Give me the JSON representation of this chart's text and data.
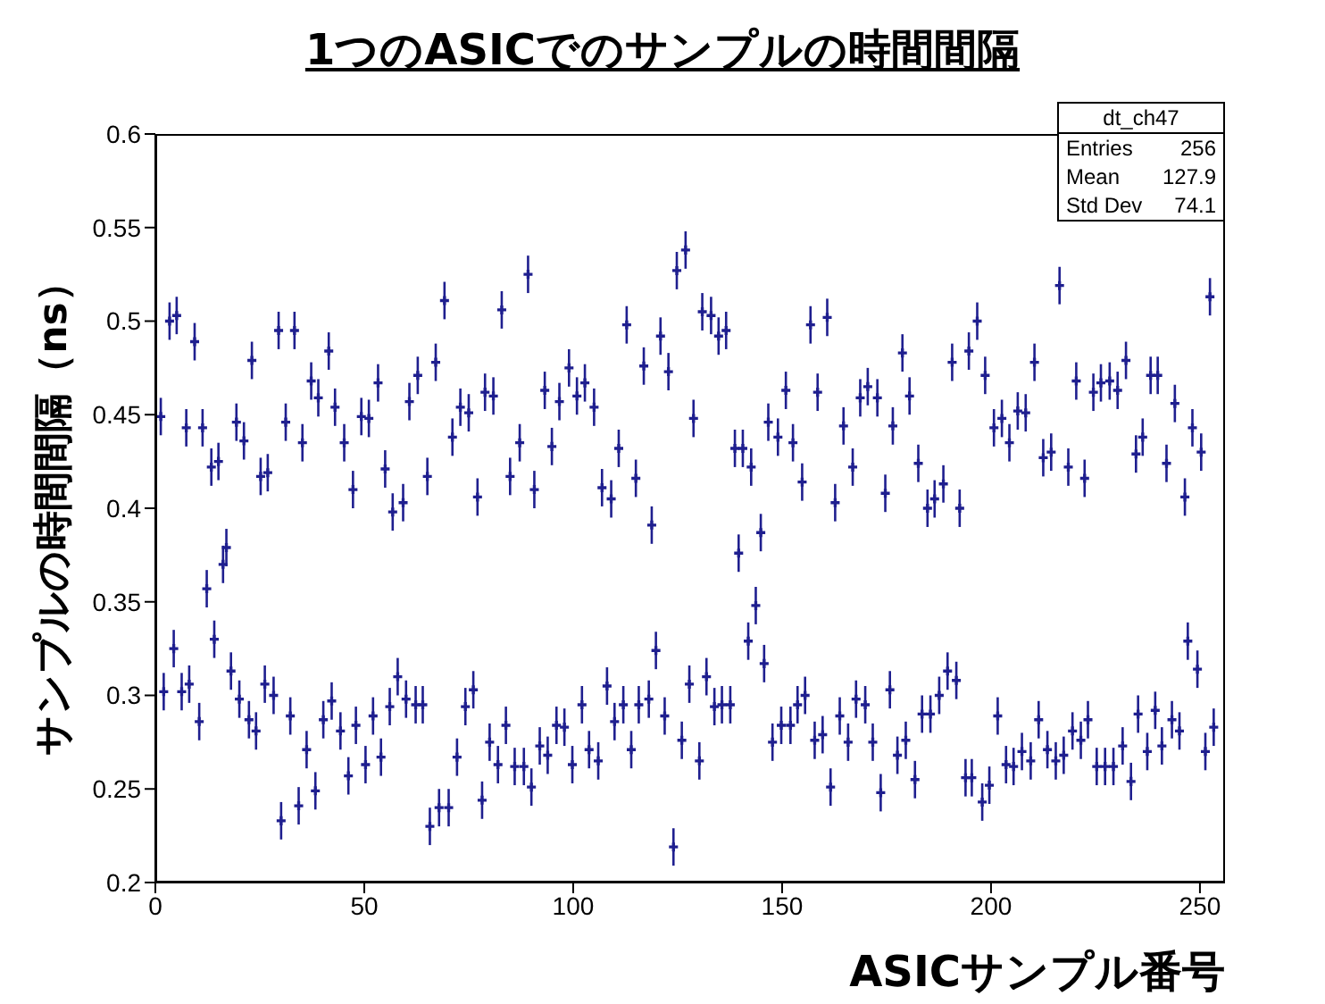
{
  "chart_data": {
    "type": "scatter",
    "title": "1つのASICでのサンプルの時間間隔",
    "xlabel": "ASICサンプル番号",
    "ylabel": "サンプルの時間間隔（ns）",
    "annotations": [
      "dt_ch47",
      "Entries",
      "256",
      "Mean",
      "127.9",
      "Std Dev",
      "74.1"
    ],
    "xlim": [
      0,
      256
    ],
    "xticks": [
      0,
      50,
      100,
      150,
      200,
      250
    ],
    "ylim": [
      0.2,
      0.6
    ],
    "yticks": [
      0.2,
      0.25,
      0.3,
      0.35,
      0.4,
      0.45,
      0.5,
      0.55,
      0.6
    ],
    "grid": false,
    "legend": false,
    "marker": "cross",
    "series": [
      {
        "color": "#1f1f8f",
        "x": [
          1.3,
          2.0,
          3.4,
          4.4,
          5.1,
          6.3,
          7.4,
          8.1,
          9.4,
          10.5,
          11.3,
          12.3,
          13.4,
          14.1,
          15.1,
          16.2,
          17.0,
          18.1,
          19.4,
          20.1,
          21.2,
          22.4,
          23.1,
          24.1,
          25.2,
          26.2,
          26.9,
          28.3,
          29.5,
          30.1,
          31.2,
          32.3,
          33.3,
          34.3,
          35.2,
          36.2,
          37.3,
          38.3,
          39.0,
          40.2,
          41.5,
          42.2,
          43.0,
          44.3,
          45.2,
          46.2,
          47.3,
          48.0,
          49.3,
          50.3,
          51.1,
          52.1,
          53.3,
          54.0,
          55.0,
          56.1,
          56.8,
          58.0,
          59.3,
          60.0,
          60.8,
          62.3,
          62.8,
          64.0,
          65.1,
          65.7,
          67.1,
          67.9,
          69.2,
          70.2,
          71.1,
          72.2,
          73.0,
          74.2,
          75.0,
          76.1,
          77.1,
          78.2,
          78.9,
          80.0,
          80.9,
          82.0,
          82.9,
          83.9,
          84.9,
          86.0,
          87.2,
          88.2,
          89.2,
          90.0,
          90.7,
          92.0,
          93.2,
          93.9,
          94.9,
          96.0,
          96.7,
          97.9,
          99.0,
          99.8,
          100.9,
          102.1,
          102.8,
          103.8,
          105.0,
          106.0,
          106.9,
          108.1,
          109.1,
          109.9,
          110.9,
          112.0,
          112.8,
          113.9,
          115.0,
          115.7,
          116.9,
          118.1,
          118.8,
          119.8,
          120.9,
          121.9,
          122.8,
          124.0,
          124.8,
          126.0,
          126.9,
          127.8,
          128.8,
          130.2,
          130.9,
          131.9,
          133.0,
          133.8,
          134.8,
          135.6,
          136.6,
          137.6,
          138.7,
          139.6,
          140.6,
          141.9,
          142.6,
          143.7,
          144.9,
          145.7,
          146.7,
          147.7,
          149.0,
          149.8,
          150.9,
          152.0,
          152.6,
          153.7,
          154.8,
          155.5,
          156.8,
          157.8,
          158.5,
          159.7,
          160.8,
          161.6,
          162.7,
          163.8,
          164.7,
          165.8,
          166.9,
          167.7,
          168.7,
          169.9,
          170.5,
          171.7,
          172.8,
          173.6,
          174.7,
          175.8,
          176.5,
          177.6,
          178.8,
          179.6,
          180.5,
          181.8,
          182.6,
          183.5,
          184.8,
          185.5,
          186.5,
          187.6,
          188.6,
          189.6,
          190.7,
          191.7,
          192.5,
          193.9,
          194.7,
          195.4,
          196.7,
          197.9,
          198.6,
          199.6,
          200.7,
          201.6,
          202.6,
          203.6,
          204.4,
          205.4,
          206.4,
          207.4,
          208.3,
          209.5,
          210.4,
          211.4,
          212.5,
          213.5,
          214.4,
          215.5,
          216.4,
          217.4,
          218.5,
          219.5,
          220.4,
          221.5,
          222.4,
          223.2,
          224.5,
          225.3,
          226.3,
          227.3,
          228.4,
          229.3,
          230.3,
          231.5,
          232.3,
          233.5,
          234.7,
          235.2,
          236.3,
          237.4,
          238.2,
          239.3,
          239.9,
          240.9,
          242.0,
          243.3,
          244.0,
          245.1,
          246.4,
          247.1,
          248.2,
          249.4,
          250.3,
          251.3,
          252.4,
          253.3
        ],
        "values": [
          0.449,
          0.302,
          0.5,
          0.325,
          0.503,
          0.302,
          0.443,
          0.306,
          0.489,
          0.286,
          0.443,
          0.357,
          0.422,
          0.33,
          0.425,
          0.37,
          0.379,
          0.313,
          0.446,
          0.298,
          0.436,
          0.287,
          0.479,
          0.281,
          0.417,
          0.306,
          0.419,
          0.3,
          0.495,
          0.233,
          0.446,
          0.289,
          0.495,
          0.241,
          0.435,
          0.271,
          0.468,
          0.249,
          0.459,
          0.287,
          0.484,
          0.297,
          0.454,
          0.281,
          0.435,
          0.257,
          0.41,
          0.284,
          0.449,
          0.263,
          0.448,
          0.289,
          0.467,
          0.267,
          0.421,
          0.294,
          0.398,
          0.31,
          0.403,
          0.298,
          0.457,
          0.295,
          0.471,
          0.295,
          0.417,
          0.23,
          0.478,
          0.24,
          0.511,
          0.24,
          0.438,
          0.267,
          0.454,
          0.294,
          0.451,
          0.303,
          0.406,
          0.244,
          0.462,
          0.275,
          0.46,
          0.263,
          0.506,
          0.284,
          0.417,
          0.262,
          0.435,
          0.262,
          0.525,
          0.251,
          0.41,
          0.273,
          0.463,
          0.268,
          0.433,
          0.284,
          0.457,
          0.283,
          0.475,
          0.263,
          0.46,
          0.295,
          0.467,
          0.271,
          0.454,
          0.265,
          0.411,
          0.305,
          0.405,
          0.286,
          0.432,
          0.295,
          0.498,
          0.271,
          0.416,
          0.295,
          0.476,
          0.298,
          0.391,
          0.324,
          0.492,
          0.289,
          0.473,
          0.219,
          0.527,
          0.276,
          0.538,
          0.306,
          0.448,
          0.265,
          0.505,
          0.31,
          0.503,
          0.294,
          0.492,
          0.295,
          0.495,
          0.295,
          0.432,
          0.376,
          0.432,
          0.329,
          0.422,
          0.348,
          0.387,
          0.317,
          0.446,
          0.275,
          0.438,
          0.284,
          0.463,
          0.284,
          0.435,
          0.295,
          0.414,
          0.3,
          0.498,
          0.276,
          0.462,
          0.279,
          0.502,
          0.251,
          0.403,
          0.289,
          0.444,
          0.275,
          0.422,
          0.298,
          0.459,
          0.295,
          0.465,
          0.275,
          0.459,
          0.248,
          0.408,
          0.303,
          0.444,
          0.268,
          0.483,
          0.276,
          0.46,
          0.255,
          0.424,
          0.29,
          0.4,
          0.29,
          0.405,
          0.3,
          0.413,
          0.313,
          0.478,
          0.308,
          0.4,
          0.256,
          0.484,
          0.256,
          0.5,
          0.243,
          0.471,
          0.252,
          0.443,
          0.289,
          0.448,
          0.263,
          0.435,
          0.262,
          0.452,
          0.27,
          0.451,
          0.265,
          0.478,
          0.287,
          0.427,
          0.271,
          0.43,
          0.265,
          0.519,
          0.268,
          0.422,
          0.281,
          0.468,
          0.276,
          0.416,
          0.287,
          0.462,
          0.262,
          0.467,
          0.262,
          0.468,
          0.262,
          0.463,
          0.273,
          0.479,
          0.254,
          0.429,
          0.29,
          0.438,
          0.27,
          0.471,
          0.292,
          0.471,
          0.273,
          0.424,
          0.287,
          0.456,
          0.281,
          0.406,
          0.329,
          0.443,
          0.314,
          0.43,
          0.27,
          0.513,
          0.283
        ],
        "errors": [
          0.01,
          0.01,
          0.01,
          0.01,
          0.01,
          0.01,
          0.01,
          0.01,
          0.01,
          0.01,
          0.01,
          0.01,
          0.01,
          0.01,
          0.01,
          0.01,
          0.01,
          0.01,
          0.01,
          0.01,
          0.01,
          0.01,
          0.01,
          0.01,
          0.01,
          0.01,
          0.01,
          0.01,
          0.01,
          0.01,
          0.01,
          0.01,
          0.01,
          0.01,
          0.01,
          0.01,
          0.01,
          0.01,
          0.01,
          0.01,
          0.01,
          0.01,
          0.01,
          0.01,
          0.01,
          0.01,
          0.01,
          0.01,
          0.01,
          0.01,
          0.01,
          0.01,
          0.01,
          0.01,
          0.01,
          0.01,
          0.01,
          0.01,
          0.01,
          0.01,
          0.01,
          0.01,
          0.01,
          0.01,
          0.01,
          0.01,
          0.01,
          0.01,
          0.01,
          0.01,
          0.01,
          0.01,
          0.01,
          0.01,
          0.01,
          0.01,
          0.01,
          0.01,
          0.01,
          0.01,
          0.01,
          0.01,
          0.01,
          0.01,
          0.01,
          0.01,
          0.01,
          0.01,
          0.01,
          0.01,
          0.01,
          0.01,
          0.01,
          0.01,
          0.01,
          0.01,
          0.01,
          0.01,
          0.01,
          0.01,
          0.01,
          0.01,
          0.01,
          0.01,
          0.01,
          0.01,
          0.01,
          0.01,
          0.01,
          0.01,
          0.01,
          0.01,
          0.01,
          0.01,
          0.01,
          0.01,
          0.01,
          0.01,
          0.01,
          0.01,
          0.01,
          0.01,
          0.01,
          0.01,
          0.01,
          0.01,
          0.01,
          0.01,
          0.01,
          0.01,
          0.01,
          0.01,
          0.01,
          0.01,
          0.01,
          0.01,
          0.01,
          0.01,
          0.01,
          0.01,
          0.01,
          0.01,
          0.01,
          0.01,
          0.01,
          0.01,
          0.01,
          0.01,
          0.01,
          0.01,
          0.01,
          0.01,
          0.01,
          0.01,
          0.01,
          0.01,
          0.01,
          0.01,
          0.01,
          0.01,
          0.01,
          0.01,
          0.01,
          0.01,
          0.01,
          0.01,
          0.01,
          0.01,
          0.01,
          0.01,
          0.01,
          0.01,
          0.01,
          0.01,
          0.01,
          0.01,
          0.01,
          0.01,
          0.01,
          0.01,
          0.01,
          0.01,
          0.01,
          0.01,
          0.01,
          0.01,
          0.01,
          0.01,
          0.01,
          0.01,
          0.01,
          0.01,
          0.01,
          0.01,
          0.01,
          0.01,
          0.01,
          0.01,
          0.01,
          0.01,
          0.01,
          0.01,
          0.01,
          0.01,
          0.01,
          0.01,
          0.01,
          0.01,
          0.01,
          0.01,
          0.01,
          0.01,
          0.01,
          0.01,
          0.01,
          0.01,
          0.01,
          0.01,
          0.01,
          0.01,
          0.01,
          0.01,
          0.01,
          0.01,
          0.01,
          0.01,
          0.01,
          0.01,
          0.01,
          0.01,
          0.01,
          0.01,
          0.01,
          0.01,
          0.01,
          0.01,
          0.01,
          0.01,
          0.01,
          0.01,
          0.01,
          0.01,
          0.01,
          0.01,
          0.01,
          0.01,
          0.01,
          0.01,
          0.01,
          0.01,
          0.01,
          0.01,
          0.01,
          0.01
        ]
      }
    ]
  }
}
